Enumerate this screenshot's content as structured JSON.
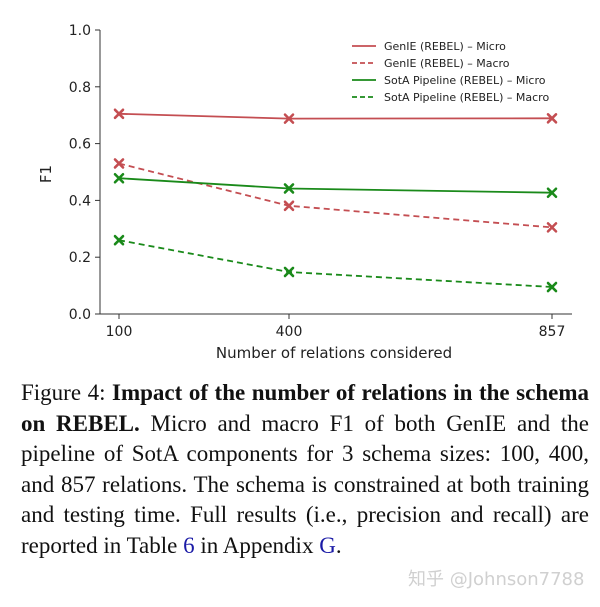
{
  "chart_data": {
    "type": "line",
    "xlabel": "Number of relations considered",
    "ylabel": "F1",
    "categories": [
      "100",
      "400",
      "857"
    ],
    "ylim": [
      0.0,
      1.0
    ],
    "yticks": [
      "0.0",
      "0.2",
      "0.4",
      "0.6",
      "0.8",
      "1.0"
    ],
    "legend_position": "top-right",
    "grid": false,
    "series": [
      {
        "name": "GenIE (REBEL) – Micro",
        "values": [
          0.705,
          0.688,
          0.689
        ],
        "color": "#c44e52",
        "dashed": false
      },
      {
        "name": "GenIE (REBEL) – Macro",
        "values": [
          0.53,
          0.381,
          0.305
        ],
        "color": "#c44e52",
        "dashed": true
      },
      {
        "name": "SotA Pipeline (REBEL) – Micro",
        "values": [
          0.478,
          0.442,
          0.427
        ],
        "color": "#1a8a1a",
        "dashed": false
      },
      {
        "name": "SotA Pipeline (REBEL) – Macro",
        "values": [
          0.26,
          0.148,
          0.095
        ],
        "color": "#1a8a1a",
        "dashed": true
      }
    ]
  },
  "caption": {
    "figure_label": "Figure 4:",
    "title": "Impact of the number of relations in the schema on REBEL.",
    "body": "Micro and macro F1 of both GenIE and the pipeline of SotA components for 3 schema sizes: 100, 400, and 857 relations. The schema is constrained at both training and testing time. Full results (i.e., precision and recall) are reported in Table",
    "table_ref": "6",
    "body_mid": "in Appendix",
    "appendix_ref": "G",
    "body_end": "."
  },
  "watermark": "知乎 @Johnson7788"
}
